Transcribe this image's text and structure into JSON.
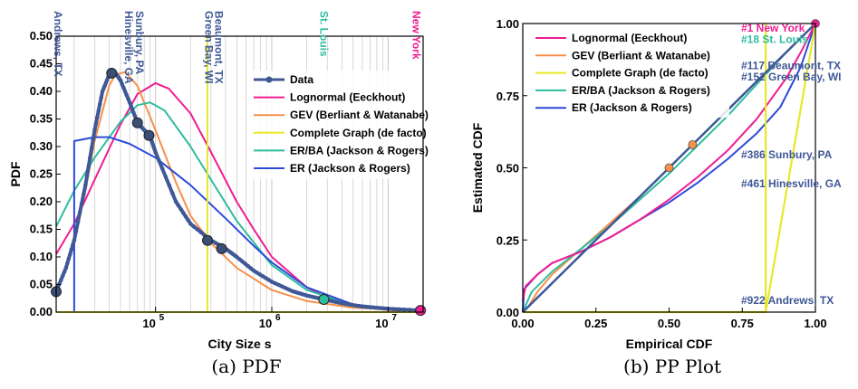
{
  "colors": {
    "data": "#3f5896",
    "data_marker": "#3a4f78",
    "lognormal": "#f01c92",
    "gev": "#f7904a",
    "complete": "#e8e82a",
    "erba": "#2ebd9e",
    "er": "#2d4ad8",
    "grid": "#c8c8c8"
  },
  "chart_data": [
    {
      "type": "line",
      "caption": "(a) PDF",
      "xlabel": "City Size s",
      "ylabel": "PDF",
      "xscale": "log",
      "xlim": [
        14000,
        20000000
      ],
      "ylim": [
        0,
        0.5
      ],
      "x_ticks": [
        {
          "value": 100000,
          "base": "10",
          "exp": "5"
        },
        {
          "value": 1000000,
          "base": "10",
          "exp": "6"
        },
        {
          "value": 10000000,
          "base": "10",
          "exp": "7"
        }
      ],
      "y_ticks": [
        "0.00",
        "0.05",
        "0.10",
        "0.15",
        "0.20",
        "0.25",
        "0.30",
        "0.35",
        "0.40",
        "0.45",
        "0.50"
      ],
      "grid": "vertical log-decade lines",
      "legend_position": "right",
      "series": [
        {
          "name": "Data",
          "color_key": "data",
          "x": [
            14000,
            17000,
            20000,
            25000,
            30000,
            35000,
            40000,
            45000,
            50000,
            60000,
            70000,
            80000,
            90000,
            100000,
            150000,
            200000,
            300000,
            400000,
            500000,
            700000,
            1000000,
            1500000,
            2000000,
            2800000,
            4000000,
            6000000,
            10000000,
            19000000
          ],
          "y": [
            0.037,
            0.08,
            0.13,
            0.23,
            0.33,
            0.4,
            0.43,
            0.434,
            0.42,
            0.38,
            0.343,
            0.33,
            0.318,
            0.29,
            0.2,
            0.16,
            0.13,
            0.115,
            0.1,
            0.075,
            0.055,
            0.038,
            0.03,
            0.023,
            0.016,
            0.01,
            0.006,
            0.003
          ]
        },
        {
          "name": "Lognormal (Eeckhout)",
          "color_key": "lognormal",
          "x": [
            14000,
            20000,
            30000,
            50000,
            70000,
            100000,
            130000,
            200000,
            300000,
            500000,
            700000,
            1000000,
            2000000,
            3000000,
            5000000,
            10000000,
            20000000
          ],
          "y": [
            0.105,
            0.16,
            0.24,
            0.34,
            0.395,
            0.415,
            0.405,
            0.36,
            0.29,
            0.2,
            0.15,
            0.1,
            0.045,
            0.025,
            0.012,
            0.004,
            0.001
          ]
        },
        {
          "name": "GEV (Berliant & Watanabe)",
          "color_key": "gev",
          "x": [
            14000,
            20000,
            25000,
            30000,
            40000,
            45000,
            55000,
            70000,
            100000,
            150000,
            200000,
            300000,
            500000,
            1000000,
            2000000,
            5000000,
            20000000
          ],
          "y": [
            0.03,
            0.13,
            0.22,
            0.31,
            0.41,
            0.43,
            0.435,
            0.41,
            0.33,
            0.235,
            0.175,
            0.125,
            0.08,
            0.04,
            0.02,
            0.008,
            0.002
          ]
        },
        {
          "name": "Complete Graph (de facto)",
          "color_key": "complete",
          "x": [
            14000,
            280000,
            280000,
            280000,
            20000000
          ],
          "y": [
            0.0,
            0.0,
            0.5,
            0.0,
            0.0
          ]
        },
        {
          "name": "ER/BA (Jackson & Rogers)",
          "color_key": "erba",
          "x": [
            14000,
            20000,
            30000,
            50000,
            70000,
            90000,
            120000,
            200000,
            300000,
            500000,
            1000000,
            2000000,
            5000000,
            20000000
          ],
          "y": [
            0.155,
            0.22,
            0.28,
            0.345,
            0.375,
            0.38,
            0.365,
            0.3,
            0.24,
            0.165,
            0.085,
            0.04,
            0.012,
            0.001
          ]
        },
        {
          "name": "ER (Jackson & Rogers)",
          "color_key": "er",
          "x": [
            14000,
            20000,
            20000,
            30000,
            40000,
            60000,
            100000,
            200000,
            400000,
            700000,
            1000000,
            2000000,
            5000000,
            20000000
          ],
          "y": [
            0.0,
            0.0,
            0.31,
            0.317,
            0.317,
            0.305,
            0.28,
            0.23,
            0.17,
            0.12,
            0.09,
            0.045,
            0.014,
            0.001
          ]
        }
      ],
      "markers": [
        {
          "x": 14000,
          "y": 0.037,
          "color_key": "data_marker"
        },
        {
          "x": 42000,
          "y": 0.433,
          "color_key": "data_marker"
        },
        {
          "x": 70000,
          "y": 0.343,
          "color_key": "data_marker"
        },
        {
          "x": 88000,
          "y": 0.32,
          "color_key": "data_marker"
        },
        {
          "x": 280000,
          "y": 0.13,
          "color_key": "data_marker"
        },
        {
          "x": 370000,
          "y": 0.115,
          "color_key": "data_marker"
        },
        {
          "x": 2800000,
          "y": 0.023,
          "color_key": "erba"
        },
        {
          "x": 19000000,
          "y": 0.003,
          "color_key": "lognormal"
        }
      ],
      "annotations": [
        {
          "text": "Andrews, TX",
          "x": 14500,
          "color_key": "data"
        },
        {
          "text": "Sunbury, PA",
          "x": 73000,
          "color_key": "data"
        },
        {
          "text": "Hinesville, GA",
          "x": 59000,
          "color_key": "data"
        },
        {
          "text": "Beaumont, TX",
          "x": 350000,
          "color_key": "data"
        },
        {
          "text": "Green Bay, WI",
          "x": 287000,
          "color_key": "data"
        },
        {
          "text": "St. Louis",
          "x": 2800000,
          "color_key": "erba"
        },
        {
          "text": "New York",
          "x": 17500000,
          "color_key": "lognormal"
        }
      ]
    },
    {
      "type": "line",
      "caption": "(b) PP Plot",
      "xlabel": "Empirical CDF",
      "ylabel": "Estimated CDF",
      "xlim": [
        0,
        1
      ],
      "ylim": [
        0,
        1
      ],
      "x_ticks": [
        "0.00",
        "0.25",
        "0.50",
        "0.75",
        "1.00"
      ],
      "y_ticks": [
        "0.00",
        "0.25",
        "0.50",
        "0.75",
        "1.00"
      ],
      "legend_position": "top-left",
      "series": [
        {
          "name": "Lognormal (Eeckhout)",
          "color_key": "lognormal",
          "x": [
            0,
            0.01,
            0.05,
            0.1,
            0.2,
            0.3,
            0.4,
            0.5,
            0.6,
            0.7,
            0.8,
            0.9,
            0.95,
            1.0
          ],
          "y": [
            0.04,
            0.09,
            0.13,
            0.17,
            0.21,
            0.26,
            0.32,
            0.39,
            0.47,
            0.56,
            0.67,
            0.81,
            0.9,
            1.0
          ]
        },
        {
          "name": "GEV (Berliant & Watanabe)",
          "color_key": "gev",
          "x": [
            0,
            0.02,
            0.05,
            0.1,
            0.2,
            0.3,
            0.4,
            0.5,
            0.6,
            0.7,
            0.8,
            0.9,
            1.0
          ],
          "y": [
            0.0,
            0.02,
            0.07,
            0.13,
            0.22,
            0.31,
            0.4,
            0.5,
            0.6,
            0.7,
            0.8,
            0.9,
            1.0
          ]
        },
        {
          "name": "Complete Graph (de facto)",
          "color_key": "complete",
          "x": [
            0,
            0.83,
            0.83,
            0.83,
            1.0
          ],
          "y": [
            0.0,
            0.0,
            1.0,
            0.0,
            1.0
          ]
        },
        {
          "name": "ER/BA (Jackson & Rogers)",
          "color_key": "erba",
          "x": [
            0,
            0.03,
            0.1,
            0.2,
            0.3,
            0.4,
            0.5,
            0.6,
            0.7,
            0.8,
            0.9,
            1.0
          ],
          "y": [
            0.0,
            0.07,
            0.14,
            0.22,
            0.3,
            0.39,
            0.48,
            0.58,
            0.68,
            0.79,
            0.9,
            1.0
          ]
        },
        {
          "name": "ER (Jackson & Rogers)",
          "color_key": "er",
          "x": [
            0,
            0.005,
            0.05,
            0.1,
            0.2,
            0.3,
            0.4,
            0.5,
            0.6,
            0.7,
            0.8,
            0.88,
            0.95,
            1.0
          ],
          "y": [
            0.0,
            0.08,
            0.13,
            0.17,
            0.21,
            0.26,
            0.32,
            0.38,
            0.45,
            0.53,
            0.62,
            0.71,
            0.85,
            1.0
          ]
        },
        {
          "name": "Data",
          "color_key": "data",
          "x": [
            0,
            0.1,
            0.2,
            0.3,
            0.4,
            0.5,
            0.6,
            0.7,
            0.8,
            0.9,
            1.0
          ],
          "y": [
            0,
            0.1,
            0.2,
            0.3,
            0.4,
            0.5,
            0.6,
            0.7,
            0.8,
            0.9,
            1.0
          ]
        }
      ],
      "markers": [
        {
          "x": 0.5,
          "y": 0.5,
          "color_key": "gev"
        },
        {
          "x": 0.58,
          "y": 0.58,
          "color_key": "gev"
        },
        {
          "x": 1.0,
          "y": 1.0,
          "color_key": "lognormal"
        }
      ],
      "annotations": [
        {
          "text": "#1 New York",
          "y": 0.985,
          "color_key": "lognormal"
        },
        {
          "text": "#18 St. Louis",
          "y": 0.945,
          "color_key": "erba"
        },
        {
          "text": "#117 Beaumont, TX",
          "y": 0.855,
          "color_key": "data"
        },
        {
          "text": "#152 Green Bay, WI",
          "y": 0.815,
          "color_key": "data"
        },
        {
          "text": "#386 Sunbury, PA",
          "y": 0.545,
          "color_key": "data"
        },
        {
          "text": "#461 Hinesville, GA",
          "y": 0.445,
          "color_key": "data"
        },
        {
          "text": "#922 Andrews, TX",
          "y": 0.04,
          "color_key": "data"
        }
      ]
    }
  ],
  "legend_a": [
    "Data",
    "Lognormal (Eeckhout)",
    "GEV (Berliant & Watanabe)",
    "Complete Graph (de facto)",
    "ER/BA (Jackson & Rogers)",
    "ER (Jackson & Rogers)"
  ],
  "legend_b": [
    "Lognormal (Eeckhout)",
    "GEV (Berliant & Watanabe)",
    "Complete Graph (de facto)",
    "ER/BA (Jackson & Rogers)",
    "ER (Jackson & Rogers)"
  ]
}
